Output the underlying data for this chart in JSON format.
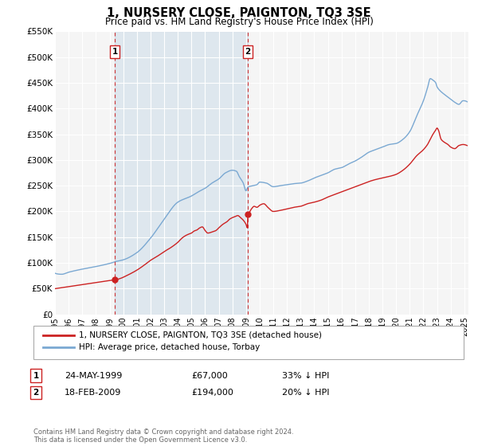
{
  "title": "1, NURSERY CLOSE, PAIGNTON, TQ3 3SE",
  "subtitle": "Price paid vs. HM Land Registry's House Price Index (HPI)",
  "ylim": [
    0,
    550000
  ],
  "xlim_start": 1995.0,
  "xlim_end": 2025.3,
  "yticks": [
    0,
    50000,
    100000,
    150000,
    200000,
    250000,
    300000,
    350000,
    400000,
    450000,
    500000,
    550000
  ],
  "ytick_labels": [
    "£0",
    "£50K",
    "£100K",
    "£150K",
    "£200K",
    "£250K",
    "£300K",
    "£350K",
    "£400K",
    "£450K",
    "£500K",
    "£550K"
  ],
  "xtick_years": [
    1995,
    1996,
    1997,
    1998,
    1999,
    2000,
    2001,
    2002,
    2003,
    2004,
    2005,
    2006,
    2007,
    2008,
    2009,
    2010,
    2011,
    2012,
    2013,
    2014,
    2015,
    2016,
    2017,
    2018,
    2019,
    2020,
    2021,
    2022,
    2023,
    2024,
    2025
  ],
  "sale1_x": 1999.39,
  "sale1_y": 67000,
  "sale1_label": "1",
  "sale1_date": "24-MAY-1999",
  "sale1_price": "£67,000",
  "sale1_hpi": "33% ↓ HPI",
  "sale2_x": 2009.13,
  "sale2_y": 194000,
  "sale2_label": "2",
  "sale2_date": "18-FEB-2009",
  "sale2_price": "£194,000",
  "sale2_hpi": "20% ↓ HPI",
  "hpi_color": "#7aa8d2",
  "sale_color": "#cc2222",
  "legend_label_sale": "1, NURSERY CLOSE, PAIGNTON, TQ3 3SE (detached house)",
  "legend_label_hpi": "HPI: Average price, detached house, Torbay",
  "footer_line1": "Contains HM Land Registry data © Crown copyright and database right 2024.",
  "footer_line2": "This data is licensed under the Open Government Licence v3.0.",
  "background_color": "#ffffff",
  "plot_bg_color": "#f5f5f5"
}
